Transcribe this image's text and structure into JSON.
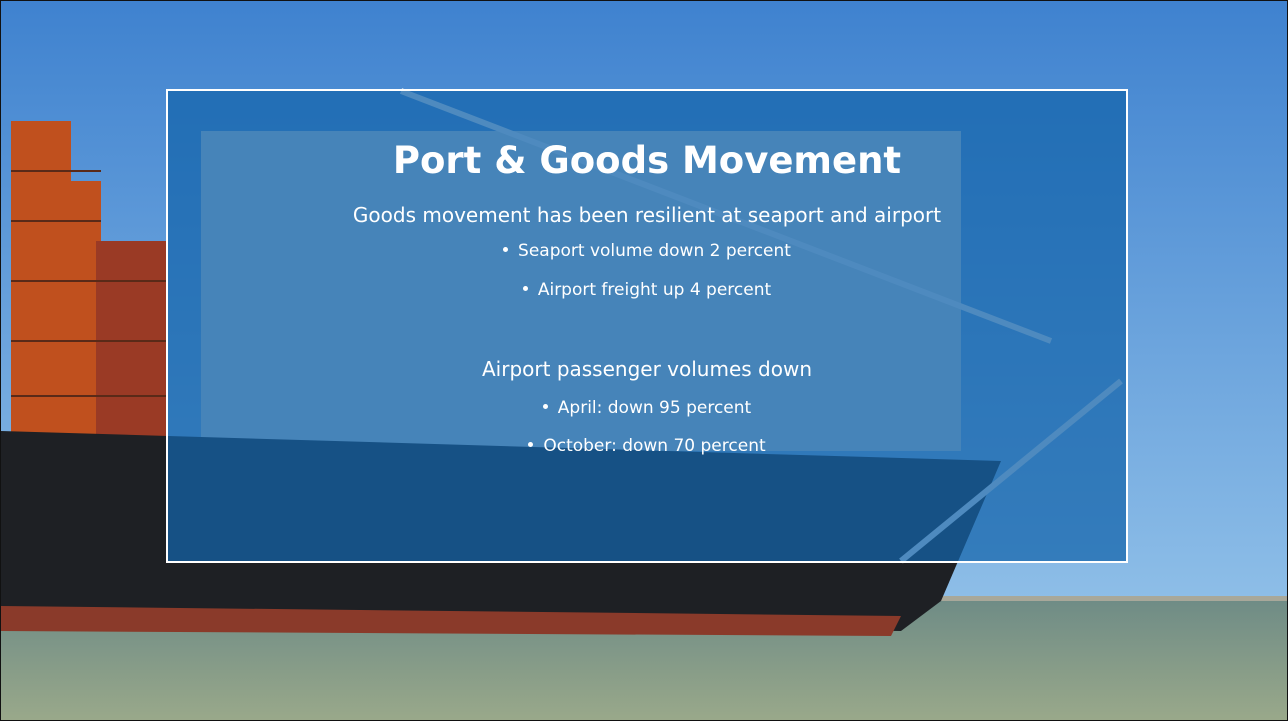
{
  "slide": {
    "title": "Port & Goods Movement",
    "sections": [
      {
        "heading": "Goods movement has been resilient at seaport and airport",
        "bullets": [
          "Seaport volume down 2 percent",
          "Airport freight up 4 percent"
        ]
      },
      {
        "heading": "Airport passenger volumes down",
        "bullets": [
          "April: down 95 percent",
          "October: down 70 percent"
        ]
      }
    ]
  }
}
